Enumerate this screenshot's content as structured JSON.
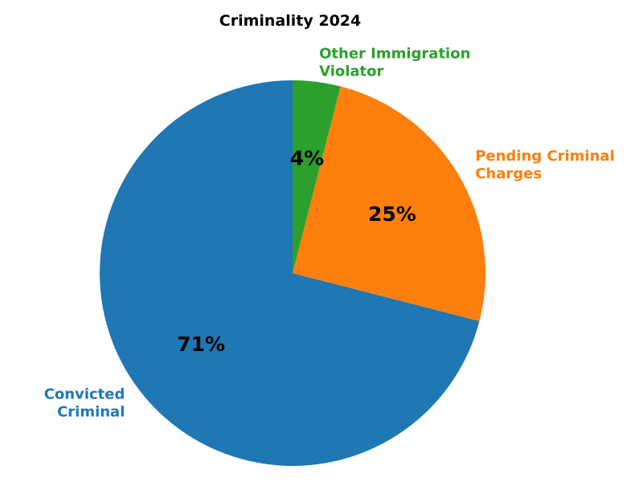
{
  "figure": {
    "title": "Criminality 2024",
    "background": "#ffffff"
  },
  "chart_data": {
    "type": "pie",
    "title": "Criminality 2024",
    "start_angle": 90,
    "counterclock": true,
    "label_radius": 1.1,
    "pct_radius": 0.6,
    "pct_color": "#000000",
    "legend": "none",
    "slices": [
      {
        "label": "Convicted Criminal",
        "label_lines": [
          "Convicted",
          "Criminal"
        ],
        "value": 71,
        "pct_label": "71%",
        "color": "#1f77b4"
      },
      {
        "label": "Pending Criminal Charges",
        "label_lines": [
          "Pending Criminal",
          "Charges"
        ],
        "value": 25,
        "pct_label": "25%",
        "color": "#ff7f0e"
      },
      {
        "label": "Other Immigration Violator",
        "label_lines": [
          "Other Immigration",
          "Violator"
        ],
        "value": 4,
        "pct_label": "4%",
        "color": "#2ca02c"
      }
    ]
  }
}
